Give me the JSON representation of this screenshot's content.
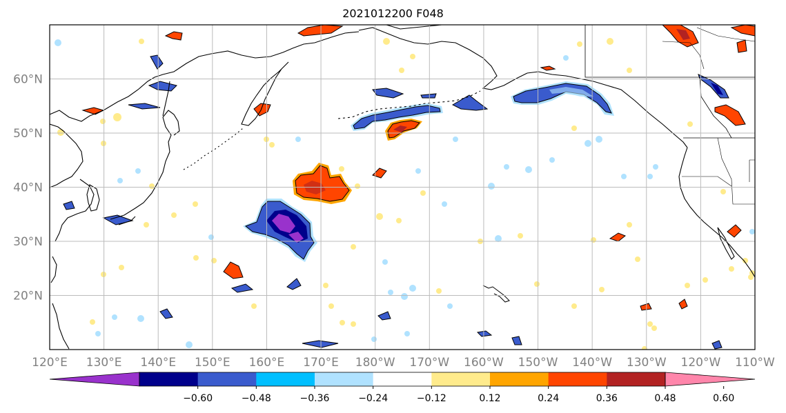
{
  "title": "2021012200 F048",
  "map": {
    "lon_range": [
      "120°E",
      "110°W"
    ],
    "lat_range_deg": [
      10,
      70
    ],
    "lon_ticks": [
      "120°E",
      "130°E",
      "140°E",
      "150°E",
      "160°E",
      "170°E",
      "180°W",
      "170°W",
      "160°W",
      "150°W",
      "140°W",
      "130°W",
      "120°W",
      "110°W"
    ],
    "lat_ticks": [
      "20°N",
      "30°N",
      "40°N",
      "50°N",
      "60°N"
    ],
    "grid": true
  },
  "colorbar": {
    "extend": "both",
    "tick_labels": [
      "−0.60",
      "−0.48",
      "−0.36",
      "−0.24",
      "−0.12",
      "0.12",
      "0.24",
      "0.36",
      "0.48",
      "0.60"
    ],
    "bins": [
      {
        "range": "< -0.60",
        "color": "#9932CC"
      },
      {
        "range": "-0.60 to -0.48",
        "color": "#00008B"
      },
      {
        "range": "-0.48 to -0.36",
        "color": "#3A5BCD"
      },
      {
        "range": "-0.36 to -0.24",
        "color": "#00BFFF"
      },
      {
        "range": "-0.24 to -0.12",
        "color": "#B0E2FF"
      },
      {
        "range": "-0.12 to 0.12",
        "color": "#FFFFFF"
      },
      {
        "range": "0.12 to 0.24",
        "color": "#FFEB8C"
      },
      {
        "range": "0.24 to 0.36",
        "color": "#FFA500"
      },
      {
        "range": "0.36 to 0.48",
        "color": "#FF4500"
      },
      {
        "range": "0.48 to 0.60",
        "color": "#B22222"
      },
      {
        "range": "> 0.60",
        "color": "#FF86AB"
      }
    ]
  },
  "colors": {
    "coastline": "#000000",
    "gridline": "#bbbbbb",
    "tick_label": "#808080"
  }
}
